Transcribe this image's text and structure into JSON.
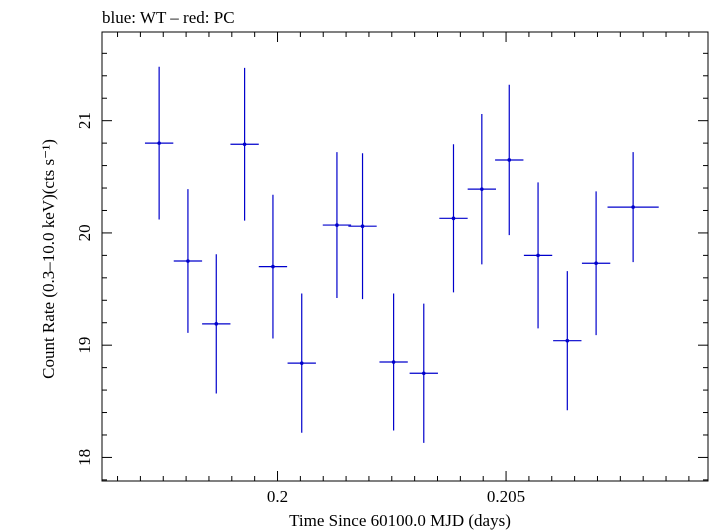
{
  "chart_data": {
    "type": "scatter",
    "title": "blue: WT – red: PC",
    "xlabel": "Time Since 60100.0 MJD (days)",
    "ylabel": "Count Rate (0.3–10.0 keV)(cts s⁻¹)",
    "xlim": [
      0.19616,
      0.20944
    ],
    "ylim": [
      17.79,
      21.79
    ],
    "x_ticks": [
      0.2,
      0.205
    ],
    "x_tick_labels": [
      "0.2",
      "0.205"
    ],
    "y_ticks": [
      18,
      19,
      20,
      21
    ],
    "y_tick_labels": [
      "18",
      "19",
      "20",
      "21"
    ],
    "grid": false,
    "series": [
      {
        "color": "#0000cc",
        "points": [
          {
            "x": 0.19741,
            "xerr": 0.00031,
            "y": 20.8,
            "yerr": 0.68
          },
          {
            "x": 0.19804,
            "xerr": 0.00031,
            "y": 19.75,
            "yerr": 0.64
          },
          {
            "x": 0.19866,
            "xerr": 0.00031,
            "y": 19.19,
            "yerr": 0.62
          },
          {
            "x": 0.19928,
            "xerr": 0.00031,
            "y": 20.79,
            "yerr": 0.68
          },
          {
            "x": 0.1999,
            "xerr": 0.00031,
            "y": 19.7,
            "yerr": 0.64
          },
          {
            "x": 0.20053,
            "xerr": 0.00031,
            "y": 18.84,
            "yerr": 0.62
          },
          {
            "x": 0.2013,
            "xerr": 0.00031,
            "y": 20.07,
            "yerr": 0.65
          },
          {
            "x": 0.20186,
            "xerr": 0.00031,
            "y": 20.06,
            "yerr": 0.65
          },
          {
            "x": 0.20254,
            "xerr": 0.00031,
            "y": 18.85,
            "yerr": 0.61
          },
          {
            "x": 0.2032,
            "xerr": 0.00031,
            "y": 18.75,
            "yerr": 0.62
          },
          {
            "x": 0.20385,
            "xerr": 0.00031,
            "y": 20.13,
            "yerr": 0.66
          },
          {
            "x": 0.20447,
            "xerr": 0.00031,
            "y": 20.39,
            "yerr": 0.67
          },
          {
            "x": 0.20507,
            "xerr": 0.00031,
            "y": 20.65,
            "yerr": 0.67
          },
          {
            "x": 0.2057,
            "xerr": 0.00031,
            "y": 19.8,
            "yerr": 0.65
          },
          {
            "x": 0.20634,
            "xerr": 0.00031,
            "y": 19.04,
            "yerr": 0.62
          },
          {
            "x": 0.20697,
            "xerr": 0.00031,
            "y": 19.73,
            "yerr": 0.64
          },
          {
            "x": 0.20778,
            "xerr": 0.00056,
            "y": 20.23,
            "yerr": 0.49
          }
        ]
      }
    ]
  }
}
